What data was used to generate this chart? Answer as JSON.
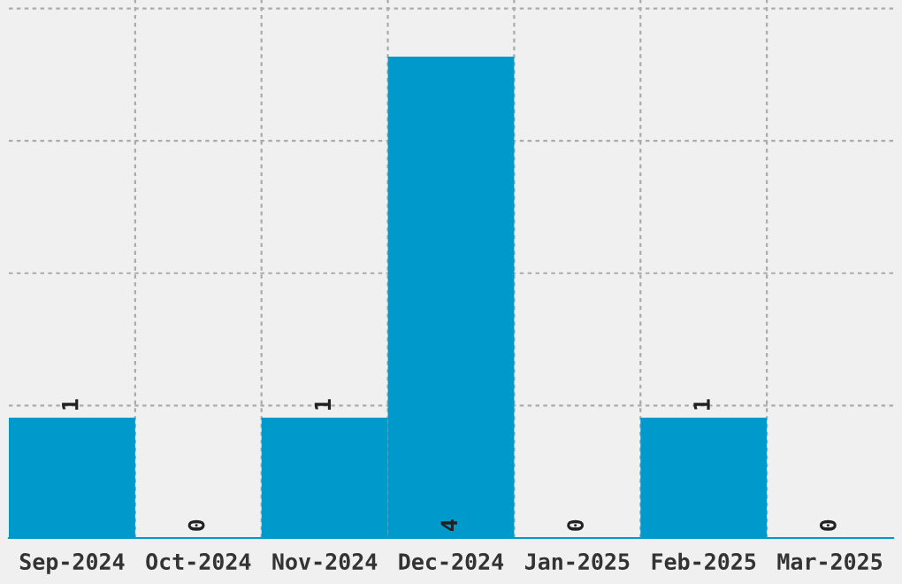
{
  "chart_data": {
    "type": "bar",
    "categories": [
      "Sep-2024",
      "Oct-2024",
      "Nov-2024",
      "Dec-2024",
      "Jan-2025",
      "Feb-2025",
      "Mar-2025"
    ],
    "values": [
      1,
      0,
      1,
      4,
      0,
      1,
      0
    ],
    "color": "#0099cc",
    "ylim": [
      0,
      4.47
    ],
    "yticks": [
      {
        "value": 1.1,
        "label": null
      },
      {
        "value": 2.2,
        "label": null
      },
      {
        "value": 3.3,
        "label": null
      },
      {
        "value": 4.4,
        "label": null
      }
    ],
    "grid": true,
    "data_labels": true
  }
}
